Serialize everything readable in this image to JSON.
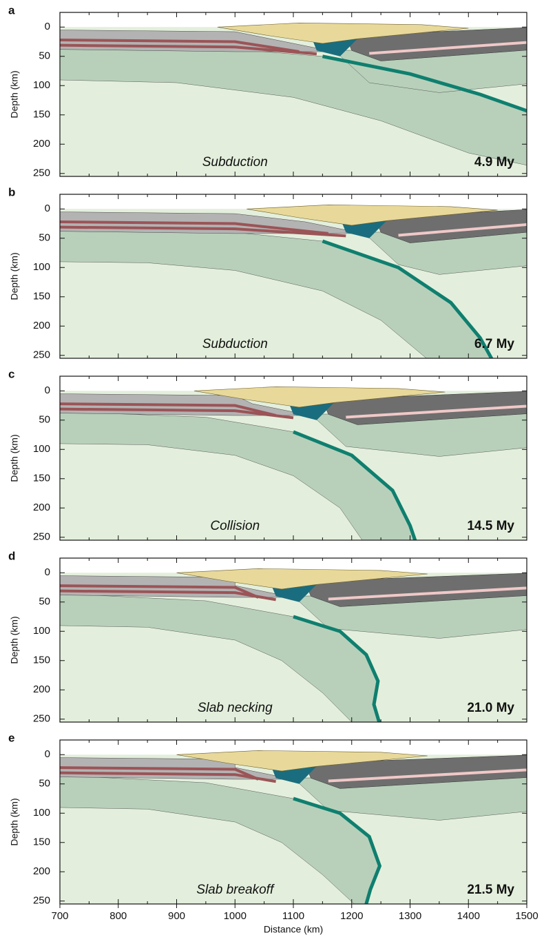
{
  "chart_data": [
    {
      "type": "cross-section",
      "label": "a",
      "annotation": "Subduction",
      "time": "4.9 My",
      "ylabel": "Depth (km)",
      "xlim": [
        700,
        1500
      ],
      "ylim": [
        -25,
        255
      ],
      "yticks": [
        0,
        50,
        100,
        150,
        200,
        250
      ],
      "y_inverted": true
    },
    {
      "type": "cross-section",
      "label": "b",
      "annotation": "Subduction",
      "time": "6.7 My",
      "ylabel": "Depth (km)",
      "xlim": [
        700,
        1500
      ],
      "ylim": [
        -25,
        255
      ],
      "yticks": [
        0,
        50,
        100,
        150,
        200,
        250
      ],
      "y_inverted": true
    },
    {
      "type": "cross-section",
      "label": "c",
      "annotation": "Collision",
      "time": "14.5 My",
      "ylabel": "Depth (km)",
      "xlim": [
        700,
        1500
      ],
      "ylim": [
        -25,
        255
      ],
      "yticks": [
        0,
        50,
        100,
        150,
        200,
        250
      ],
      "y_inverted": true
    },
    {
      "type": "cross-section",
      "label": "d",
      "annotation": "Slab necking",
      "time": "21.0 My",
      "ylabel": "Depth (km)",
      "xlim": [
        700,
        1500
      ],
      "ylim": [
        -25,
        255
      ],
      "yticks": [
        0,
        50,
        100,
        150,
        200,
        250
      ],
      "y_inverted": true
    },
    {
      "type": "cross-section",
      "label": "e",
      "annotation": "Slab breakoff",
      "time": "21.5 My",
      "ylabel": "Depth (km)",
      "xlabel": "Distance (km)",
      "xlim": [
        700,
        1500
      ],
      "ylim": [
        -25,
        255
      ],
      "yticks": [
        0,
        50,
        100,
        150,
        200,
        250
      ],
      "xticks": [
        700,
        800,
        900,
        1000,
        1100,
        1200,
        1300,
        1400,
        1500
      ],
      "y_inverted": true
    }
  ]
}
